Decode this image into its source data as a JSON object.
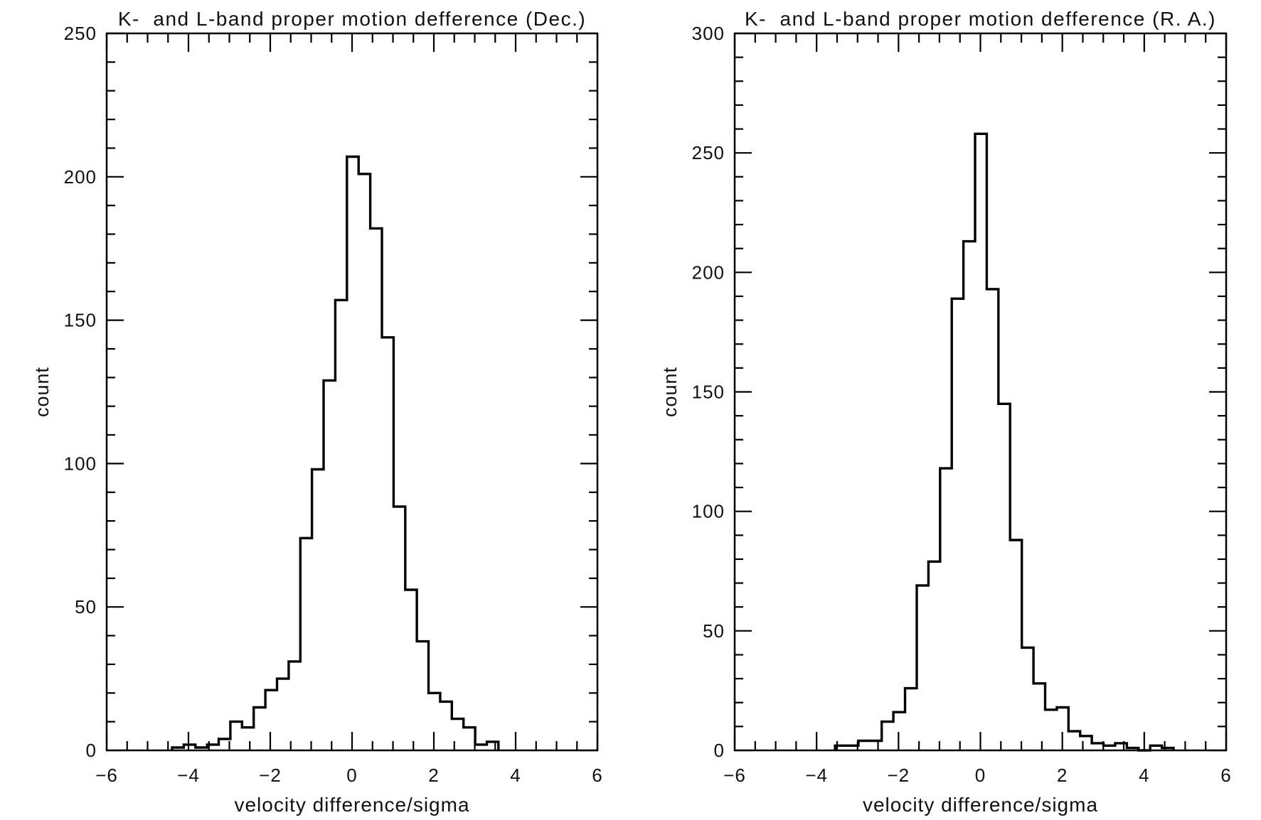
{
  "figure": {
    "background": "#ffffff",
    "ink_color": "#000000"
  },
  "chart_data": [
    {
      "type": "histogram",
      "title": "K-  and L-band proper motion defference (Dec.)",
      "xlabel": "velocity difference/sigma",
      "ylabel": "count",
      "xlim": [
        -6,
        6
      ],
      "ylim": [
        0,
        250
      ],
      "xticks": [
        -6,
        -4,
        -2,
        0,
        2,
        4,
        6
      ],
      "yticks": [
        0,
        50,
        100,
        150,
        200,
        250
      ],
      "x_minor_step": 0.5,
      "y_minor_step": 10,
      "grid": false,
      "legend": false,
      "bin_start": -4.4,
      "bin_width": 0.285,
      "counts": [
        1,
        2,
        1,
        2,
        4,
        10,
        8,
        15,
        21,
        25,
        31,
        74,
        98,
        129,
        157,
        207,
        201,
        182,
        144,
        85,
        56,
        38,
        20,
        17,
        11,
        8,
        2,
        3
      ]
    },
    {
      "type": "histogram",
      "title": "K-  and L-band proper motion defference (R. A.)",
      "xlabel": "velocity difference/sigma",
      "ylabel": "count",
      "xlim": [
        -6,
        6
      ],
      "ylim": [
        0,
        300
      ],
      "xticks": [
        -6,
        -4,
        -2,
        0,
        2,
        4,
        6
      ],
      "yticks": [
        0,
        50,
        100,
        150,
        200,
        250,
        300
      ],
      "x_minor_step": 0.5,
      "y_minor_step": 10,
      "grid": false,
      "legend": false,
      "bin_start": -3.55,
      "bin_width": 0.285,
      "counts": [
        2,
        2,
        4,
        4,
        12,
        16,
        26,
        69,
        79,
        118,
        189,
        213,
        258,
        193,
        145,
        88,
        43,
        28,
        17,
        18,
        8,
        6,
        3,
        2,
        3,
        1,
        0,
        2,
        1
      ]
    }
  ]
}
